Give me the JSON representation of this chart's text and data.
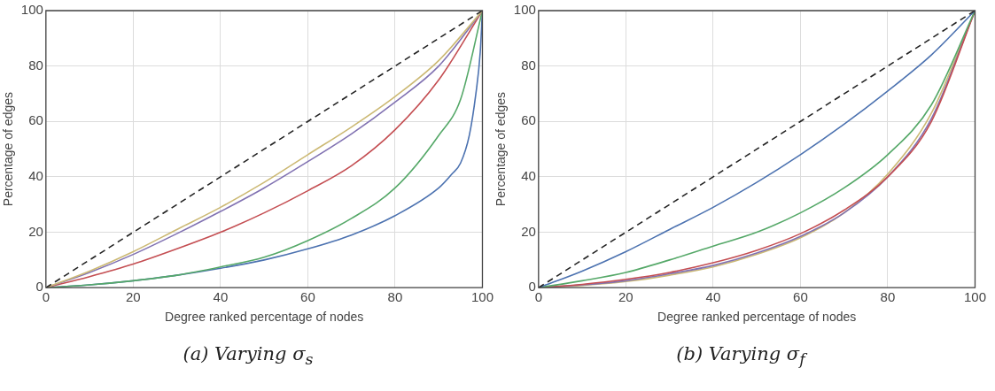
{
  "chart_data": [
    {
      "type": "line",
      "xlabel": "Degree ranked percentage of nodes",
      "ylabel": "Percentage of edges",
      "xlim": [
        0,
        100
      ],
      "ylim": [
        0,
        100
      ],
      "xticks": [
        0,
        20,
        40,
        60,
        80,
        100
      ],
      "yticks": [
        0,
        20,
        40,
        60,
        80,
        100
      ],
      "grid": true,
      "legend": false,
      "annotations": [
        "(a) Varying σ$_{s}$"
      ],
      "series": [
        {
          "color": "#222222",
          "line_style": "dashed",
          "x": [
            0,
            100
          ],
          "values": [
            0,
            100
          ]
        },
        {
          "color": "#ccb974",
          "x": [
            0,
            10,
            20,
            30,
            40,
            50,
            60,
            70,
            80,
            90,
            100
          ],
          "values": [
            0,
            6,
            13,
            21,
            29,
            38,
            48,
            58,
            69,
            82,
            100
          ]
        },
        {
          "color": "#8172b2",
          "x": [
            0,
            10,
            20,
            30,
            40,
            50,
            60,
            70,
            80,
            90,
            100
          ],
          "values": [
            0,
            5.5,
            12,
            19.5,
            27.5,
            36,
            45.5,
            55.5,
            67,
            80,
            100
          ]
        },
        {
          "color": "#c44e52",
          "x": [
            0,
            10,
            20,
            30,
            40,
            50,
            60,
            70,
            80,
            90,
            100
          ],
          "values": [
            0,
            4,
            8.5,
            14,
            20,
            27,
            35,
            44,
            57,
            75,
            100
          ]
        },
        {
          "color": "#55a868",
          "x": [
            0,
            10,
            20,
            30,
            40,
            50,
            60,
            70,
            80,
            90,
            95,
            100
          ],
          "values": [
            0,
            1,
            2.5,
            4.5,
            7.5,
            11,
            17,
            25,
            36,
            55,
            68,
            100
          ]
        },
        {
          "color": "#4c72b0",
          "x": [
            0,
            10,
            20,
            30,
            40,
            50,
            60,
            70,
            80,
            90,
            93,
            95,
            97,
            98.5,
            99.5,
            100
          ],
          "values": [
            0,
            1,
            2.5,
            4.5,
            7,
            10,
            14,
            19,
            26,
            36,
            41,
            45,
            55,
            70,
            85,
            100
          ]
        }
      ]
    },
    {
      "type": "line",
      "xlabel": "Degree ranked percentage of nodes",
      "ylabel": "Percentage of edges",
      "xlim": [
        0,
        100
      ],
      "ylim": [
        0,
        100
      ],
      "xticks": [
        0,
        20,
        40,
        60,
        80,
        100
      ],
      "yticks": [
        0,
        20,
        40,
        60,
        80,
        100
      ],
      "grid": true,
      "legend": false,
      "annotations": [
        "(b) Varying σ$_{f}$"
      ],
      "series": [
        {
          "color": "#222222",
          "line_style": "dashed",
          "x": [
            0,
            100
          ],
          "values": [
            0,
            100
          ]
        },
        {
          "color": "#4c72b0",
          "x": [
            0,
            10,
            20,
            30,
            40,
            50,
            60,
            70,
            80,
            90,
            100
          ],
          "values": [
            0,
            6,
            13,
            21,
            29,
            38,
            48,
            59,
            71,
            84,
            100
          ]
        },
        {
          "color": "#55a868",
          "x": [
            0,
            10,
            20,
            30,
            40,
            50,
            60,
            70,
            80,
            90,
            100
          ],
          "values": [
            0,
            2.5,
            5.5,
            10,
            15,
            20,
            27,
            36,
            48,
            66,
            100
          ]
        },
        {
          "color": "#c44e52",
          "x": [
            0,
            10,
            20,
            30,
            40,
            50,
            60,
            70,
            80,
            90,
            100
          ],
          "values": [
            0,
            1.2,
            3,
            5.5,
            9,
            13.5,
            19.5,
            28,
            40,
            60,
            100
          ]
        },
        {
          "color": "#8172b2",
          "x": [
            0,
            10,
            20,
            30,
            40,
            50,
            60,
            70,
            80,
            90,
            100
          ],
          "values": [
            0,
            1,
            2.5,
            5,
            8,
            12.5,
            18.5,
            27,
            40,
            61,
            100
          ]
        },
        {
          "color": "#ccb974",
          "x": [
            0,
            10,
            20,
            30,
            40,
            50,
            60,
            70,
            80,
            90,
            100
          ],
          "values": [
            0,
            0.8,
            2.2,
            4.5,
            7.5,
            12,
            18,
            27,
            41,
            63,
            100
          ]
        }
      ]
    }
  ]
}
